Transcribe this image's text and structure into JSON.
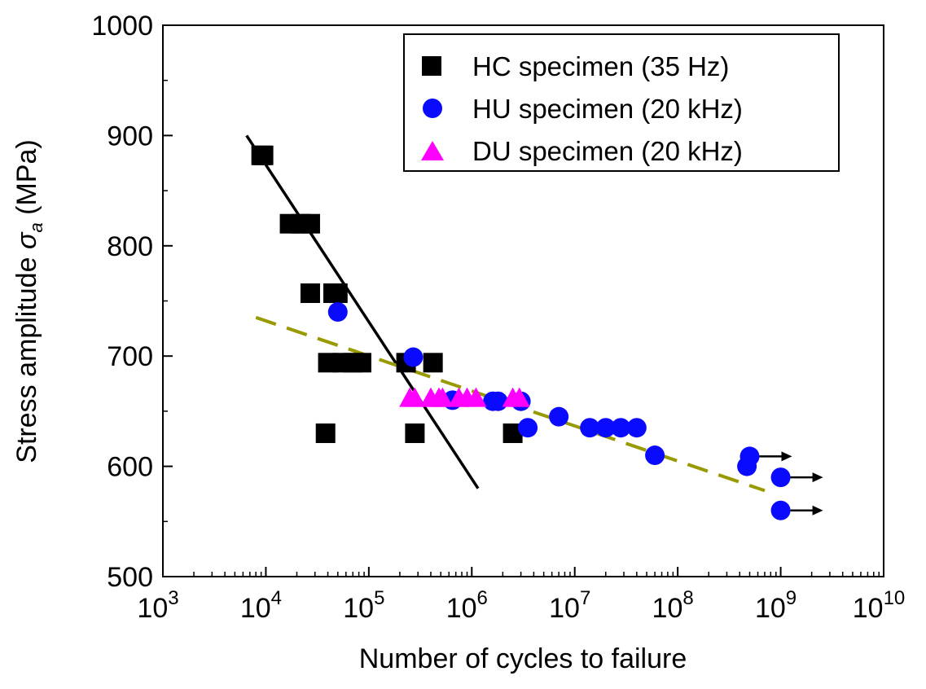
{
  "chart_data": {
    "type": "scatter",
    "xlabel": "Number of cycles to failure",
    "ylabel_main": "Stress amplitude ",
    "ylabel_symbol": "σ",
    "ylabel_sub": "a",
    "ylabel_unit": " (MPa)",
    "x_scale": "log",
    "xlim": [
      1000,
      10000000000
    ],
    "ylim": [
      500,
      1000
    ],
    "x_tick_base": "10",
    "x_tick_exponents": [
      "3",
      "4",
      "5",
      "6",
      "7",
      "8",
      "9",
      "10"
    ],
    "y_ticks": [
      "500",
      "600",
      "700",
      "800",
      "900",
      "1000"
    ],
    "grid": false,
    "legend_position": "top-right",
    "series": [
      {
        "name": "HC specimen (35 Hz)",
        "marker": "square",
        "color": "#000000",
        "points": [
          [
            9000,
            882
          ],
          [
            9500,
            882
          ],
          [
            17000,
            820
          ],
          [
            22000,
            820
          ],
          [
            27000,
            820
          ],
          [
            27000,
            757
          ],
          [
            45000,
            757
          ],
          [
            50000,
            757
          ],
          [
            40000,
            694
          ],
          [
            55000,
            694
          ],
          [
            70000,
            694
          ],
          [
            85000,
            694
          ],
          [
            230000,
            694
          ],
          [
            420000,
            694
          ],
          [
            38000,
            630
          ],
          [
            280000,
            630
          ],
          [
            2500000,
            630
          ]
        ]
      },
      {
        "name": "HU specimen (20 kHz)",
        "marker": "circle",
        "color": "#0a0aff",
        "points": [
          [
            50000,
            740
          ],
          [
            270000,
            699
          ],
          [
            650000,
            660
          ],
          [
            1600000,
            659
          ],
          [
            1800000,
            659
          ],
          [
            3000000,
            659
          ],
          [
            3500000,
            635
          ],
          [
            7000000,
            645
          ],
          [
            14000000,
            635
          ],
          [
            20000000,
            635
          ],
          [
            28000000,
            635
          ],
          [
            40000000,
            635
          ],
          [
            60000000,
            610
          ],
          [
            470000000,
            600
          ],
          [
            500000000,
            609
          ],
          [
            1000000000,
            590
          ],
          [
            1000000000,
            560
          ]
        ]
      },
      {
        "name": "DU specimen (20 kHz)",
        "marker": "triangle",
        "color": "#ff00ff",
        "points": [
          [
            250000,
            662
          ],
          [
            280000,
            662
          ],
          [
            400000,
            662
          ],
          [
            480000,
            662
          ],
          [
            520000,
            662
          ],
          [
            750000,
            662
          ],
          [
            900000,
            662
          ],
          [
            1100000,
            662
          ],
          [
            2500000,
            662
          ],
          [
            2900000,
            662
          ]
        ]
      }
    ],
    "runouts": [
      {
        "x": 500000000,
        "y": 609
      },
      {
        "x": 1000000000,
        "y": 590
      },
      {
        "x": 1000000000,
        "y": 560
      }
    ],
    "fit_lines": [
      {
        "style": "solid",
        "color": "#000000",
        "points": [
          [
            6500,
            900
          ],
          [
            1150000,
            580
          ]
        ]
      },
      {
        "style": "dashed",
        "color": "#999900",
        "points": [
          [
            8000,
            735
          ],
          [
            700000000,
            578
          ]
        ]
      }
    ]
  }
}
